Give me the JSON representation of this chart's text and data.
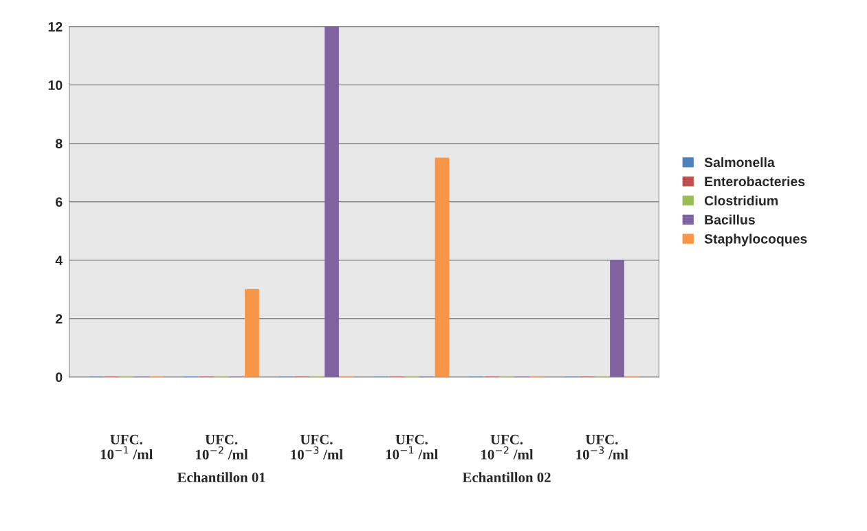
{
  "chart_data": {
    "type": "bar",
    "categories": [
      "UFC.\n10$^{−1}$ /ml",
      "UFC.\n10$^{−2}$ /ml",
      "UFC.\n10$^{−3}$ /ml",
      "UFC.\n10$^{−1}$ /ml",
      "UFC.\n10$^{−2}$ /ml",
      "UFC.\n10$^{−3}$ /ml"
    ],
    "series": [
      {
        "name": "Salmonella",
        "color": "#4f81bd",
        "values": [
          0,
          0,
          0,
          0,
          0,
          0
        ]
      },
      {
        "name": "Enterobacteries",
        "color": "#c0504d",
        "values": [
          0,
          0,
          0,
          0,
          0,
          0
        ]
      },
      {
        "name": "Clostridium",
        "color": "#9bbb59",
        "values": [
          0,
          0,
          0,
          0,
          0,
          0
        ]
      },
      {
        "name": "Bacillus",
        "color": "#8064a2",
        "values": [
          0,
          0,
          12,
          0,
          0,
          4
        ]
      },
      {
        "name": "Staphylocoques",
        "color": "#f79646",
        "values": [
          0,
          3,
          0,
          7.5,
          0,
          0
        ]
      }
    ],
    "annotations": [
      "Echantillon 01",
      "Echantillon 02"
    ],
    "ylim": [
      0,
      12
    ],
    "yticks": [
      0,
      2,
      4,
      6,
      8,
      10,
      12
    ],
    "grid": "y",
    "legend": "right"
  }
}
